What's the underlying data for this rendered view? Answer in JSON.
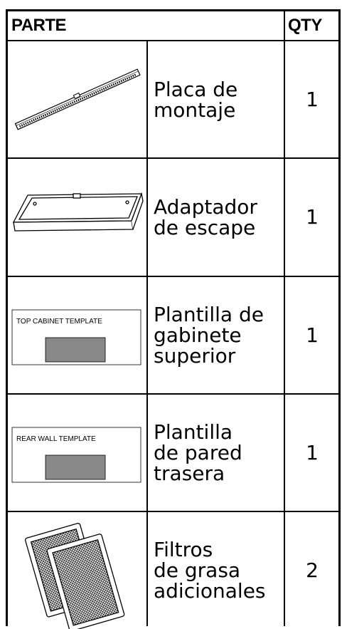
{
  "header": {
    "part": "PARTE",
    "qty": "QTY"
  },
  "rows": [
    {
      "name_lines": [
        "Placa de",
        "montaje"
      ],
      "qty": 1
    },
    {
      "name_lines": [
        "Adaptador",
        "de escape"
      ],
      "qty": 1
    },
    {
      "image_label": "TOP CABINET TEMPLATE",
      "name_lines": [
        "Plantilla de",
        "gabinete",
        "superior"
      ],
      "qty": 1
    },
    {
      "image_label": "REAR WALL TEMPLATE",
      "name_lines": [
        "Plantilla",
        "de pared",
        "trasera"
      ],
      "qty": 1
    },
    {
      "name_lines": [
        "Filtros",
        "de grasa",
        "adicionales"
      ],
      "qty": 2
    }
  ]
}
